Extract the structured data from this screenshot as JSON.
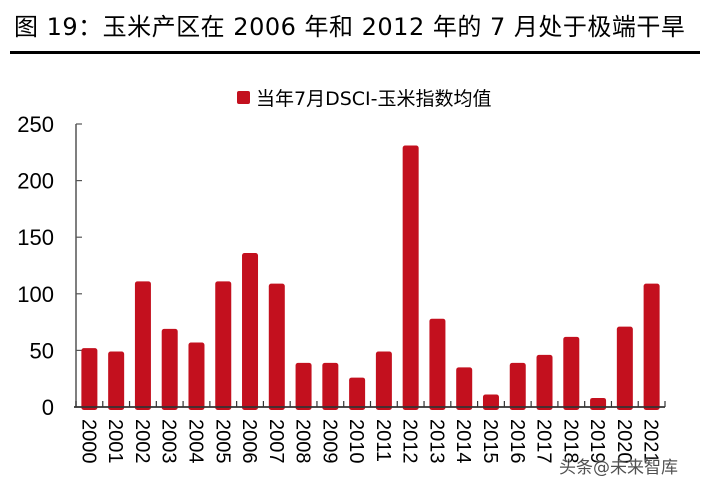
{
  "figure": {
    "title": "图 19：玉米产区在 2006 年和 2012 年的 7 月处于极端干旱",
    "watermark": "头条@未来智库"
  },
  "legend": {
    "label": "当年7月DSCI-玉米指数均值",
    "color": "#C3101E"
  },
  "chart_data": {
    "type": "bar",
    "title": "图 19：玉米产区在 2006 年和 2012 年的 7 月处于极端干旱",
    "xlabel": "",
    "ylabel": "",
    "categories": [
      "2000",
      "2001",
      "2002",
      "2003",
      "2004",
      "2005",
      "2006",
      "2007",
      "2008",
      "2009",
      "2010",
      "2011",
      "2012",
      "2013",
      "2014",
      "2015",
      "2016",
      "2017",
      "2018",
      "2019",
      "2020",
      "2021"
    ],
    "series": [
      {
        "name": "当年7月DSCI-玉米指数均值",
        "color": "#C3101E",
        "values": [
          52,
          49,
          111,
          69,
          57,
          111,
          136,
          109,
          39,
          39,
          26,
          49,
          231,
          78,
          35,
          11,
          39,
          46,
          62,
          8,
          71,
          109
        ]
      }
    ],
    "ylim": [
      0,
      250
    ],
    "yticks": [
      0,
      50,
      100,
      150,
      200,
      250
    ],
    "grid": false,
    "legend_position": "top-center",
    "xtick_rotation": 90
  }
}
